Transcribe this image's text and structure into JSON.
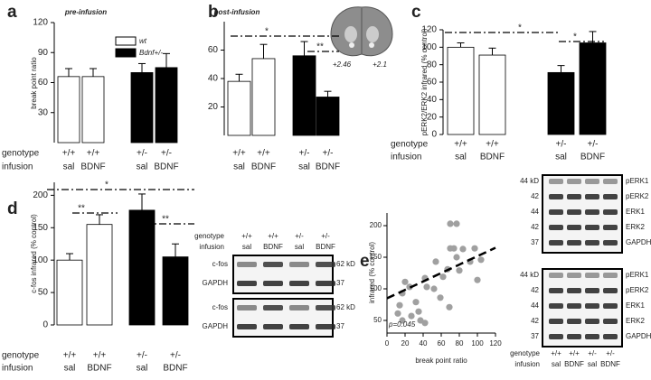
{
  "chart_data": [
    {
      "type": "bar",
      "panel": "a",
      "title": "pre-infusion",
      "y_label": "break point ratio",
      "row_labels": [
        "genotype",
        "infusion"
      ],
      "genotypes": [
        "+/+",
        "+/+",
        "+/-",
        "+/-"
      ],
      "categories": [
        "sal",
        "BDNF",
        "sal",
        "BDNF"
      ],
      "values": [
        66,
        66,
        70,
        75
      ],
      "errors": [
        8,
        8,
        9,
        14
      ],
      "colors": [
        "#ffffff",
        "#ffffff",
        "#000000",
        "#000000"
      ],
      "legend": [
        {
          "name": "wt",
          "color": "#ffffff"
        },
        {
          "name": "Bdnf+/-",
          "color": "#000000"
        }
      ],
      "ylim": [
        0,
        120
      ],
      "yticks": [
        30,
        60,
        90,
        120
      ]
    },
    {
      "type": "bar",
      "panel": "b",
      "title": "post-infusion",
      "row_labels": [
        "genotype",
        "infusion"
      ],
      "genotypes": [
        "+/+",
        "+/+",
        "+/-",
        "+/-"
      ],
      "categories": [
        "sal",
        "BDNF",
        "sal",
        "BDNF"
      ],
      "values": [
        38,
        54,
        56,
        27
      ],
      "errors": [
        5,
        10,
        10,
        4
      ],
      "colors": [
        "#ffffff",
        "#ffffff",
        "#000000",
        "#000000"
      ],
      "annotations": [
        "*",
        "**"
      ],
      "brain_section_labels": [
        "+2.46",
        "+2.1"
      ],
      "ylim": [
        0,
        80
      ],
      "yticks": [
        20,
        40,
        60
      ]
    },
    {
      "type": "bar",
      "panel": "c",
      "y_label": "pERK2/ERK2 infrared (% control)",
      "row_labels": [
        "genotype",
        "infusion"
      ],
      "genotypes": [
        "+/+",
        "+/+",
        "+/-",
        "+/-"
      ],
      "categories": [
        "sal",
        "BDNF",
        "sal",
        "BDNF"
      ],
      "values": [
        100,
        91,
        71,
        105
      ],
      "errors": [
        5,
        8,
        8,
        13
      ],
      "colors": [
        "#ffffff",
        "#ffffff",
        "#000000",
        "#000000"
      ],
      "annotations": [
        "*",
        "*"
      ],
      "ylim": [
        0,
        120
      ],
      "yticks": [
        0,
        20,
        40,
        60,
        80,
        100,
        120
      ]
    },
    {
      "type": "bar",
      "panel": "d",
      "y_label": "c-fos infrared (% control)",
      "row_labels": [
        "genotype",
        "infusion"
      ],
      "genotypes": [
        "+/+",
        "+/+",
        "+/-",
        "+/-"
      ],
      "categories": [
        "sal",
        "BDNF",
        "sal",
        "BDNF"
      ],
      "values": [
        100,
        155,
        177,
        105
      ],
      "errors": [
        10,
        15,
        25,
        20
      ],
      "colors": [
        "#ffffff",
        "#ffffff",
        "#000000",
        "#000000"
      ],
      "annotations": [
        "*",
        "**",
        "**"
      ],
      "ylim": [
        0,
        220
      ],
      "yticks": [
        0,
        50,
        100,
        150,
        200
      ]
    },
    {
      "type": "scatter",
      "panel": "e",
      "x_label": "break point ratio",
      "y_label": "infrared (% control)",
      "annotation": "p=0.045",
      "color": "#a0a0a0",
      "x": [
        14,
        12,
        17,
        20,
        25,
        32,
        35,
        37,
        42,
        42,
        44,
        52,
        54,
        59,
        62,
        67,
        69,
        74,
        77,
        80,
        84,
        92,
        97,
        100,
        104,
        17,
        27,
        70,
        70,
        77
      ],
      "y": [
        74,
        61,
        93,
        111,
        103,
        79,
        64,
        50,
        46,
        117,
        103,
        100,
        143,
        86,
        119,
        131,
        71,
        164,
        150,
        129,
        163,
        143,
        164,
        114,
        146,
        50,
        57,
        164,
        203,
        203
      ],
      "fit": {
        "x": [
          0,
          120
        ],
        "y": [
          85,
          165
        ]
      },
      "xlim": [
        0,
        120
      ],
      "ylim": [
        30,
        220
      ],
      "xticks": [
        0,
        20,
        40,
        60,
        80,
        100,
        120
      ],
      "yticks": [
        50,
        100,
        150,
        200
      ]
    }
  ],
  "blots": {
    "cfos": {
      "genotype_label": "genotype",
      "genotypes": [
        "+/+",
        "+/+",
        "+/-",
        "+/-"
      ],
      "infusion_label": "infusion",
      "infusions": [
        "sal",
        "BDNF",
        "sal",
        "BDNF"
      ],
      "panels": [
        [
          {
            "name": "c-fos",
            "kd": "62 kD"
          },
          {
            "name": "GAPDH",
            "kd": "37"
          }
        ],
        [
          {
            "name": "c-fos",
            "kd": "62 kD"
          },
          {
            "name": "GAPDH",
            "kd": "37"
          }
        ]
      ]
    },
    "erk": {
      "panels": [
        {
          "kd": [
            "44 kD",
            "42",
            "44",
            "42",
            "37"
          ],
          "bands": [
            "pERK1",
            "pERK2",
            "ERK1",
            "ERK2",
            "GAPDH"
          ]
        },
        {
          "kd": [
            "44 kD",
            "42",
            "44",
            "42",
            "37"
          ],
          "bands": [
            "pERK1",
            "pERK2",
            "ERK1",
            "ERK2",
            "GAPDH"
          ]
        }
      ],
      "genotype_label": "genotype",
      "genotypes": [
        "+/+",
        "+/+",
        "+/-",
        "+/-"
      ],
      "infusion_label": "infusion",
      "infusions": [
        "sal",
        "BDNF",
        "sal",
        "BDNF"
      ]
    }
  }
}
